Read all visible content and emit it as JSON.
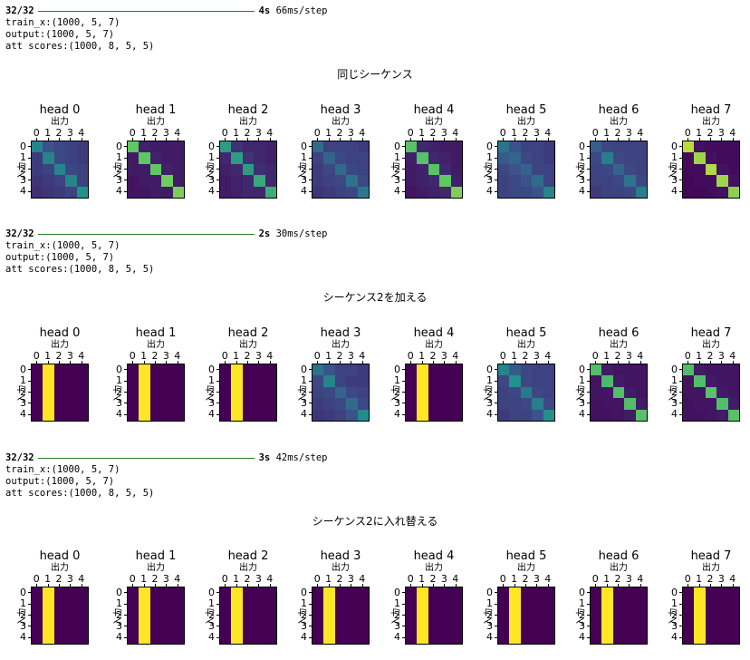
{
  "ui": {
    "xlabel": "出力",
    "ylabel": "入力",
    "ticks": [
      "0",
      "1",
      "2",
      "3",
      "4"
    ]
  },
  "blocks": [
    {
      "log": {
        "progress": "32/32",
        "time": "4s",
        "step": "66ms/step",
        "lines": [
          "train_x:(1000, 5, 7)",
          "output:(1000, 5, 7)",
          "att scores:(1000, 8, 5, 5)"
        ]
      },
      "title": "同じシーケンス",
      "heads": [
        {
          "label": "head 0",
          "matrix": [
            [
              0.45,
              0.25,
              0.22,
              0.2,
              0.18
            ],
            [
              0.18,
              0.45,
              0.22,
              0.2,
              0.18
            ],
            [
              0.18,
              0.2,
              0.45,
              0.22,
              0.2
            ],
            [
              0.16,
              0.18,
              0.2,
              0.45,
              0.2
            ],
            [
              0.14,
              0.16,
              0.18,
              0.2,
              0.5
            ]
          ]
        },
        {
          "label": "head 1",
          "matrix": [
            [
              0.75,
              0.1,
              0.08,
              0.08,
              0.08
            ],
            [
              0.08,
              0.75,
              0.1,
              0.08,
              0.08
            ],
            [
              0.08,
              0.08,
              0.75,
              0.1,
              0.08
            ],
            [
              0.06,
              0.08,
              0.08,
              0.78,
              0.08
            ],
            [
              0.06,
              0.06,
              0.08,
              0.08,
              0.8
            ]
          ]
        },
        {
          "label": "head 2",
          "matrix": [
            [
              0.55,
              0.15,
              0.12,
              0.12,
              0.1
            ],
            [
              0.12,
              0.55,
              0.15,
              0.12,
              0.1
            ],
            [
              0.1,
              0.12,
              0.55,
              0.14,
              0.12
            ],
            [
              0.08,
              0.1,
              0.12,
              0.6,
              0.12
            ],
            [
              0.08,
              0.1,
              0.12,
              0.12,
              0.62
            ]
          ]
        },
        {
          "label": "head 3",
          "matrix": [
            [
              0.35,
              0.2,
              0.2,
              0.2,
              0.18
            ],
            [
              0.2,
              0.32,
              0.22,
              0.2,
              0.2
            ],
            [
              0.18,
              0.22,
              0.35,
              0.22,
              0.2
            ],
            [
              0.18,
              0.2,
              0.22,
              0.38,
              0.22
            ],
            [
              0.16,
              0.18,
              0.2,
              0.22,
              0.4
            ]
          ]
        },
        {
          "label": "head 4",
          "matrix": [
            [
              0.72,
              0.12,
              0.1,
              0.08,
              0.08
            ],
            [
              0.1,
              0.72,
              0.12,
              0.1,
              0.08
            ],
            [
              0.08,
              0.1,
              0.72,
              0.12,
              0.08
            ],
            [
              0.08,
              0.1,
              0.12,
              0.75,
              0.1
            ],
            [
              0.06,
              0.08,
              0.1,
              0.12,
              0.8
            ]
          ]
        },
        {
          "label": "head 5",
          "matrix": [
            [
              0.38,
              0.25,
              0.2,
              0.2,
              0.18
            ],
            [
              0.28,
              0.32,
              0.22,
              0.2,
              0.18
            ],
            [
              0.22,
              0.25,
              0.32,
              0.2,
              0.2
            ],
            [
              0.2,
              0.22,
              0.25,
              0.35,
              0.2
            ],
            [
              0.2,
              0.22,
              0.22,
              0.25,
              0.45
            ]
          ]
        },
        {
          "label": "head 6",
          "matrix": [
            [
              0.3,
              0.22,
              0.2,
              0.2,
              0.2
            ],
            [
              0.22,
              0.42,
              0.22,
              0.2,
              0.2
            ],
            [
              0.2,
              0.22,
              0.32,
              0.22,
              0.2
            ],
            [
              0.2,
              0.2,
              0.22,
              0.38,
              0.22
            ],
            [
              0.18,
              0.2,
              0.2,
              0.22,
              0.42
            ]
          ]
        },
        {
          "label": "head 7",
          "matrix": [
            [
              0.9,
              0.05,
              0.03,
              0.03,
              0.03
            ],
            [
              0.03,
              0.85,
              0.05,
              0.03,
              0.03
            ],
            [
              0.03,
              0.03,
              0.88,
              0.05,
              0.03
            ],
            [
              0.02,
              0.03,
              0.03,
              0.85,
              0.05
            ],
            [
              0.02,
              0.02,
              0.03,
              0.05,
              0.82
            ]
          ]
        }
      ]
    },
    {
      "log": {
        "progress": "32/32",
        "time": "2s",
        "step": "30ms/step",
        "lines": [
          "train_x:(1000, 5, 7)",
          "output:(1000, 5, 7)",
          "att scores:(1000, 8, 5, 5)"
        ]
      },
      "title": "シーケンス2を加える",
      "heads": [
        {
          "label": "head 0",
          "matrix": [
            [
              0,
              1,
              0,
              0,
              0
            ],
            [
              0,
              1,
              0,
              0,
              0
            ],
            [
              0,
              1,
              0,
              0,
              0
            ],
            [
              0,
              1,
              0,
              0,
              0
            ],
            [
              0,
              1,
              0,
              0,
              0
            ]
          ]
        },
        {
          "label": "head 1",
          "matrix": [
            [
              0,
              1,
              0,
              0,
              0
            ],
            [
              0,
              1,
              0,
              0,
              0
            ],
            [
              0,
              1,
              0,
              0,
              0
            ],
            [
              0,
              1,
              0,
              0,
              0
            ],
            [
              0,
              1,
              0,
              0,
              0
            ]
          ]
        },
        {
          "label": "head 2",
          "matrix": [
            [
              0,
              1,
              0,
              0,
              0
            ],
            [
              0,
              1,
              0,
              0,
              0
            ],
            [
              0,
              1,
              0,
              0,
              0
            ],
            [
              0,
              1,
              0,
              0,
              0
            ],
            [
              0,
              1,
              0,
              0,
              0
            ]
          ]
        },
        {
          "label": "head 3",
          "matrix": [
            [
              0.38,
              0.25,
              0.2,
              0.2,
              0.18
            ],
            [
              0.22,
              0.45,
              0.2,
              0.18,
              0.18
            ],
            [
              0.2,
              0.22,
              0.32,
              0.22,
              0.2
            ],
            [
              0.18,
              0.2,
              0.22,
              0.35,
              0.22
            ],
            [
              0.16,
              0.18,
              0.2,
              0.25,
              0.48
            ]
          ]
        },
        {
          "label": "head 4",
          "matrix": [
            [
              0,
              1,
              0,
              0,
              0
            ],
            [
              0,
              1,
              0,
              0,
              0
            ],
            [
              0,
              1,
              0,
              0,
              0
            ],
            [
              0,
              1,
              0,
              0,
              0
            ],
            [
              0,
              1,
              0,
              0,
              0
            ]
          ]
        },
        {
          "label": "head 5",
          "matrix": [
            [
              0.45,
              0.28,
              0.22,
              0.2,
              0.2
            ],
            [
              0.22,
              0.5,
              0.22,
              0.2,
              0.2
            ],
            [
              0.2,
              0.22,
              0.4,
              0.22,
              0.2
            ],
            [
              0.2,
              0.2,
              0.22,
              0.42,
              0.22
            ],
            [
              0.18,
              0.2,
              0.2,
              0.25,
              0.5
            ]
          ]
        },
        {
          "label": "head 6",
          "matrix": [
            [
              0.7,
              0.08,
              0.06,
              0.06,
              0.06
            ],
            [
              0.06,
              0.68,
              0.08,
              0.06,
              0.06
            ],
            [
              0.06,
              0.06,
              0.7,
              0.08,
              0.06
            ],
            [
              0.05,
              0.06,
              0.06,
              0.7,
              0.08
            ],
            [
              0.05,
              0.05,
              0.06,
              0.08,
              0.72
            ]
          ]
        },
        {
          "label": "head 7",
          "matrix": [
            [
              0.7,
              0.08,
              0.06,
              0.06,
              0.06
            ],
            [
              0.06,
              0.7,
              0.08,
              0.06,
              0.06
            ],
            [
              0.06,
              0.06,
              0.72,
              0.08,
              0.06
            ],
            [
              0.05,
              0.06,
              0.06,
              0.7,
              0.08
            ],
            [
              0.05,
              0.05,
              0.06,
              0.08,
              0.72
            ]
          ]
        }
      ]
    },
    {
      "log": {
        "progress": "32/32",
        "time": "3s",
        "step": "42ms/step",
        "lines": [
          "train_x:(1000, 5, 7)",
          "output:(1000, 5, 7)",
          "att scores:(1000, 8, 5, 5)"
        ]
      },
      "title": "シーケンス2に入れ替える",
      "heads": [
        {
          "label": "head 0",
          "matrix": [
            [
              0,
              1,
              0,
              0,
              0
            ],
            [
              0,
              1,
              0,
              0,
              0
            ],
            [
              0,
              1,
              0,
              0,
              0
            ],
            [
              0,
              1,
              0,
              0,
              0
            ],
            [
              0,
              1,
              0,
              0,
              0
            ]
          ]
        },
        {
          "label": "head 1",
          "matrix": [
            [
              0,
              1,
              0,
              0,
              0
            ],
            [
              0,
              1,
              0,
              0,
              0
            ],
            [
              0,
              1,
              0,
              0,
              0
            ],
            [
              0,
              1,
              0,
              0,
              0
            ],
            [
              0,
              1,
              0,
              0,
              0
            ]
          ]
        },
        {
          "label": "head 2",
          "matrix": [
            [
              0,
              1,
              0,
              0,
              0
            ],
            [
              0,
              1,
              0,
              0,
              0
            ],
            [
              0,
              1,
              0,
              0,
              0
            ],
            [
              0,
              1,
              0,
              0,
              0
            ],
            [
              0,
              1,
              0,
              0,
              0
            ]
          ]
        },
        {
          "label": "head 3",
          "matrix": [
            [
              0,
              1,
              0,
              0,
              0
            ],
            [
              0,
              1,
              0,
              0,
              0
            ],
            [
              0,
              1,
              0,
              0,
              0
            ],
            [
              0,
              1,
              0,
              0,
              0
            ],
            [
              0,
              1,
              0,
              0,
              0
            ]
          ]
        },
        {
          "label": "head 4",
          "matrix": [
            [
              0,
              1,
              0,
              0,
              0
            ],
            [
              0,
              1,
              0,
              0,
              0
            ],
            [
              0,
              1,
              0,
              0,
              0
            ],
            [
              0,
              1,
              0,
              0,
              0
            ],
            [
              0,
              1,
              0,
              0,
              0
            ]
          ]
        },
        {
          "label": "head 5",
          "matrix": [
            [
              0,
              1,
              0,
              0,
              0
            ],
            [
              0,
              1,
              0,
              0,
              0
            ],
            [
              0,
              1,
              0,
              0,
              0
            ],
            [
              0,
              1,
              0,
              0,
              0
            ],
            [
              0,
              1,
              0,
              0,
              0
            ]
          ]
        },
        {
          "label": "head 6",
          "matrix": [
            [
              0,
              1,
              0,
              0,
              0
            ],
            [
              0,
              1,
              0,
              0,
              0
            ],
            [
              0,
              1,
              0,
              0,
              0
            ],
            [
              0,
              1,
              0,
              0,
              0
            ],
            [
              0,
              1,
              0,
              0,
              0
            ]
          ]
        },
        {
          "label": "head 7",
          "matrix": [
            [
              0,
              1,
              0,
              0,
              0
            ],
            [
              0,
              1,
              0,
              0,
              0
            ],
            [
              0,
              1,
              0,
              0,
              0
            ],
            [
              0,
              1,
              0,
              0,
              0
            ],
            [
              0,
              1,
              0,
              0,
              0
            ]
          ]
        }
      ]
    }
  ]
}
